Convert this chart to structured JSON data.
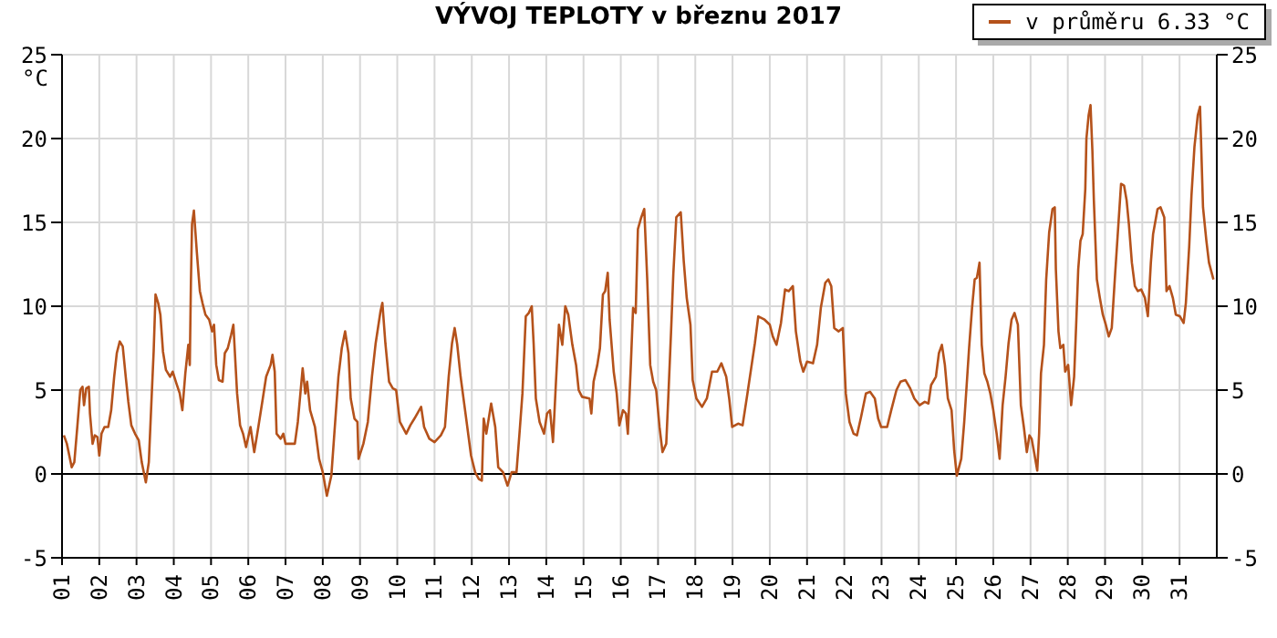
{
  "chart_data": {
    "type": "line",
    "title": "VÝVOJ TEPLOTY v březnu 2017",
    "ylabel": "°C",
    "x": [
      1.05,
      1.13,
      1.26,
      1.33,
      1.41,
      1.49,
      1.55,
      1.59,
      1.65,
      1.72,
      1.75,
      1.82,
      1.88,
      1.95,
      2.0,
      2.06,
      2.14,
      2.24,
      2.32,
      2.4,
      2.47,
      2.55,
      2.63,
      2.71,
      2.78,
      2.86,
      2.96,
      3.06,
      3.14,
      3.25,
      3.33,
      3.4,
      3.46,
      3.51,
      3.58,
      3.64,
      3.71,
      3.79,
      3.9,
      3.97,
      4.07,
      4.16,
      4.23,
      4.31,
      4.39,
      4.43,
      4.46,
      4.49,
      4.54,
      4.62,
      4.7,
      4.77,
      4.85,
      4.95,
      5.03,
      5.08,
      5.14,
      5.21,
      5.31,
      5.37,
      5.45,
      5.54,
      5.6,
      5.7,
      5.78,
      5.86,
      5.94,
      6.06,
      6.16,
      6.27,
      6.39,
      6.48,
      6.6,
      6.65,
      6.71,
      6.76,
      6.87,
      6.94,
      7.0,
      7.25,
      7.33,
      7.46,
      7.53,
      7.58,
      7.66,
      7.79,
      7.9,
      8.0,
      8.11,
      8.23,
      8.31,
      8.42,
      8.51,
      8.6,
      8.69,
      8.75,
      8.85,
      8.93,
      8.96,
      9.09,
      9.21,
      9.32,
      9.42,
      9.55,
      9.6,
      9.68,
      9.78,
      9.88,
      9.97,
      10.07,
      10.24,
      10.35,
      10.46,
      10.64,
      10.72,
      10.86,
      11.0,
      11.17,
      11.28,
      11.38,
      11.47,
      11.54,
      11.61,
      11.7,
      11.82,
      11.98,
      12.09,
      12.19,
      12.27,
      12.32,
      12.39,
      12.52,
      12.63,
      12.71,
      12.84,
      12.96,
      13.07,
      13.2,
      13.28,
      13.36,
      13.45,
      13.53,
      13.61,
      13.66,
      13.72,
      13.82,
      13.94,
      14.02,
      14.1,
      14.18,
      14.26,
      14.34,
      14.43,
      14.51,
      14.59,
      14.7,
      14.8,
      14.87,
      14.96,
      15.16,
      15.21,
      15.27,
      15.37,
      15.44,
      15.52,
      15.58,
      15.65,
      15.7,
      15.81,
      15.89,
      15.96,
      16.06,
      16.14,
      16.19,
      16.27,
      16.33,
      16.4,
      16.46,
      16.55,
      16.63,
      16.71,
      16.79,
      16.87,
      16.95,
      17.04,
      17.12,
      17.22,
      17.28,
      17.35,
      17.41,
      17.49,
      17.61,
      17.69,
      17.77,
      17.87,
      17.93,
      18.03,
      18.18,
      18.31,
      18.45,
      18.59,
      18.7,
      18.83,
      18.91,
      18.99,
      19.15,
      19.27,
      19.4,
      19.5,
      19.6,
      19.69,
      19.86,
      20.0,
      20.08,
      20.18,
      20.3,
      20.41,
      20.51,
      20.62,
      20.7,
      20.82,
      20.9,
      21.0,
      21.16,
      21.27,
      21.37,
      21.49,
      21.57,
      21.65,
      21.73,
      21.85,
      21.96,
      22.04,
      22.14,
      22.25,
      22.34,
      22.45,
      22.58,
      22.69,
      22.82,
      22.91,
      22.99,
      23.15,
      23.26,
      23.4,
      23.51,
      23.64,
      23.77,
      23.88,
      24.02,
      24.16,
      24.26,
      24.33,
      24.46,
      24.54,
      24.62,
      24.7,
      24.78,
      24.88,
      24.95,
      25.02,
      25.08,
      25.14,
      25.22,
      25.3,
      25.35,
      25.43,
      25.5,
      25.56,
      25.63,
      25.69,
      25.76,
      25.84,
      25.92,
      26.0,
      26.09,
      26.17,
      26.25,
      26.33,
      26.41,
      26.49,
      26.57,
      26.66,
      26.74,
      26.82,
      26.9,
      26.97,
      27.03,
      27.11,
      27.18,
      27.23,
      27.28,
      27.36,
      27.42,
      27.5,
      27.59,
      27.65,
      27.68,
      27.75,
      27.8,
      27.88,
      27.93,
      28.01,
      28.09,
      28.17,
      28.23,
      28.28,
      28.34,
      28.4,
      28.47,
      28.5,
      28.56,
      28.61,
      28.66,
      28.7,
      28.78,
      28.86,
      28.94,
      29.02,
      29.1,
      29.18,
      29.27,
      29.35,
      29.43,
      29.51,
      29.58,
      29.64,
      29.72,
      29.8,
      29.88,
      29.97,
      30.07,
      30.15,
      30.23,
      30.29,
      30.41,
      30.49,
      30.59,
      30.65,
      30.73,
      30.82,
      30.9,
      31.01,
      31.11,
      31.17,
      31.26,
      31.32,
      31.4,
      31.49,
      31.55,
      31.63,
      31.72,
      31.79,
      31.91
    ],
    "series": [
      {
        "name": "v průměru 6.33 °C",
        "color": "#b5521b",
        "values": [
          2.3,
          1.8,
          0.4,
          0.7,
          2.8,
          5.0,
          5.2,
          4.1,
          5.1,
          5.2,
          3.6,
          1.8,
          2.3,
          2.2,
          1.1,
          2.4,
          2.8,
          2.8,
          3.8,
          5.8,
          7.2,
          7.9,
          7.6,
          5.8,
          4.3,
          2.9,
          2.4,
          2.0,
          0.7,
          -0.5,
          0.7,
          4.3,
          7.3,
          10.7,
          10.2,
          9.5,
          7.3,
          6.2,
          5.8,
          6.1,
          5.4,
          4.8,
          3.8,
          6.0,
          7.7,
          6.5,
          11.4,
          14.9,
          15.7,
          13.2,
          10.9,
          10.2,
          9.5,
          9.2,
          8.5,
          8.9,
          6.5,
          5.6,
          5.5,
          7.2,
          7.5,
          8.3,
          8.9,
          4.8,
          2.9,
          2.4,
          1.6,
          2.8,
          1.3,
          2.8,
          4.5,
          5.8,
          6.5,
          7.1,
          6.1,
          2.4,
          2.1,
          2.4,
          1.8,
          1.8,
          3.1,
          6.3,
          4.8,
          5.5,
          3.8,
          2.8,
          0.9,
          0.1,
          -1.3,
          -0.1,
          2.4,
          5.8,
          7.5,
          8.5,
          7.2,
          4.5,
          3.3,
          3.1,
          0.9,
          1.8,
          3.1,
          5.8,
          7.8,
          9.7,
          10.2,
          7.8,
          5.5,
          5.1,
          5.0,
          3.1,
          2.4,
          2.9,
          3.3,
          4.0,
          2.8,
          2.1,
          1.9,
          2.3,
          2.8,
          5.8,
          7.8,
          8.7,
          7.7,
          5.8,
          3.8,
          1.1,
          0.1,
          -0.3,
          -0.4,
          3.3,
          2.4,
          4.2,
          2.8,
          0.4,
          0.1,
          -0.7,
          0.1,
          0.1,
          2.4,
          4.8,
          9.4,
          9.6,
          10.0,
          7.8,
          4.5,
          3.1,
          2.4,
          3.6,
          3.8,
          1.9,
          5.5,
          8.9,
          7.7,
          10.0,
          9.5,
          7.7,
          6.5,
          5.0,
          4.6,
          4.5,
          3.6,
          5.5,
          6.5,
          7.5,
          10.7,
          10.9,
          12.0,
          9.2,
          6.1,
          4.8,
          2.9,
          3.8,
          3.6,
          2.4,
          6.5,
          9.9,
          9.6,
          14.6,
          15.3,
          15.8,
          11.6,
          6.5,
          5.5,
          5.0,
          2.8,
          1.3,
          1.8,
          4.8,
          8.5,
          11.9,
          15.3,
          15.6,
          12.7,
          10.5,
          8.9,
          5.6,
          4.5,
          4.0,
          4.5,
          6.1,
          6.1,
          6.6,
          5.8,
          4.5,
          2.8,
          3.0,
          2.9,
          4.8,
          6.3,
          7.8,
          9.4,
          9.2,
          8.9,
          8.2,
          7.7,
          9.0,
          11.0,
          10.9,
          11.2,
          8.5,
          6.7,
          6.1,
          6.7,
          6.6,
          7.7,
          9.9,
          11.4,
          11.6,
          11.2,
          8.7,
          8.5,
          8.7,
          4.8,
          3.1,
          2.4,
          2.3,
          3.4,
          4.8,
          4.9,
          4.5,
          3.3,
          2.8,
          2.8,
          3.8,
          5.0,
          5.5,
          5.6,
          5.1,
          4.5,
          4.1,
          4.3,
          4.2,
          5.3,
          5.8,
          7.2,
          7.7,
          6.5,
          4.5,
          3.8,
          1.4,
          -0.1,
          0.4,
          0.9,
          3.1,
          5.8,
          7.5,
          9.9,
          11.6,
          11.7,
          12.6,
          7.7,
          6.0,
          5.5,
          4.8,
          3.8,
          2.4,
          0.9,
          4.1,
          5.8,
          7.8,
          9.2,
          9.6,
          8.9,
          4.1,
          2.8,
          1.3,
          2.3,
          2.1,
          1.1,
          0.2,
          2.4,
          6.0,
          7.7,
          11.6,
          14.4,
          15.8,
          15.9,
          12.2,
          8.5,
          7.5,
          7.7,
          6.1,
          6.5,
          4.1,
          5.8,
          9.2,
          12.2,
          13.9,
          14.3,
          17.0,
          20.0,
          21.4,
          22.0,
          19.3,
          16.3,
          11.6,
          10.5,
          9.5,
          8.9,
          8.2,
          8.7,
          11.9,
          14.6,
          17.3,
          17.2,
          16.3,
          14.9,
          12.6,
          11.2,
          10.9,
          11.0,
          10.5,
          9.4,
          12.6,
          14.3,
          15.8,
          15.9,
          15.3,
          10.9,
          11.2,
          10.5,
          9.5,
          9.4,
          9.0,
          10.2,
          13.6,
          16.6,
          19.5,
          21.4,
          21.9,
          15.9,
          13.9,
          12.6,
          11.6
        ]
      }
    ],
    "xlim": [
      1,
      32
    ],
    "xticks": [
      {
        "value": 1,
        "label": "01"
      },
      {
        "value": 2,
        "label": "02"
      },
      {
        "value": 3,
        "label": "03"
      },
      {
        "value": 4,
        "label": "04"
      },
      {
        "value": 5,
        "label": "05"
      },
      {
        "value": 6,
        "label": "06"
      },
      {
        "value": 7,
        "label": "07"
      },
      {
        "value": 8,
        "label": "08"
      },
      {
        "value": 9,
        "label": "09"
      },
      {
        "value": 10,
        "label": "10"
      },
      {
        "value": 11,
        "label": "11"
      },
      {
        "value": 12,
        "label": "12"
      },
      {
        "value": 13,
        "label": "13"
      },
      {
        "value": 14,
        "label": "14"
      },
      {
        "value": 15,
        "label": "15"
      },
      {
        "value": 16,
        "label": "16"
      },
      {
        "value": 17,
        "label": "17"
      },
      {
        "value": 18,
        "label": "18"
      },
      {
        "value": 19,
        "label": "19"
      },
      {
        "value": 20,
        "label": "20"
      },
      {
        "value": 21,
        "label": "21"
      },
      {
        "value": 22,
        "label": "22"
      },
      {
        "value": 23,
        "label": "23"
      },
      {
        "value": 24,
        "label": "24"
      },
      {
        "value": 25,
        "label": "25"
      },
      {
        "value": 26,
        "label": "26"
      },
      {
        "value": 27,
        "label": "27"
      },
      {
        "value": 28,
        "label": "28"
      },
      {
        "value": 29,
        "label": "29"
      },
      {
        "value": 30,
        "label": "30"
      },
      {
        "value": 31,
        "label": "31"
      }
    ],
    "ylim": [
      -5,
      25
    ],
    "yticks": [
      -5,
      0,
      5,
      10,
      15,
      20,
      25
    ],
    "y2lim": [
      -5,
      25
    ],
    "y2ticks": [
      -5,
      0,
      5,
      10,
      15,
      20,
      25
    ],
    "ref_lines": [
      {
        "axis": "y",
        "value": 0,
        "color": "#000000"
      }
    ],
    "grid": true,
    "legend": "top right",
    "marker": "none",
    "line_style": "solid"
  }
}
